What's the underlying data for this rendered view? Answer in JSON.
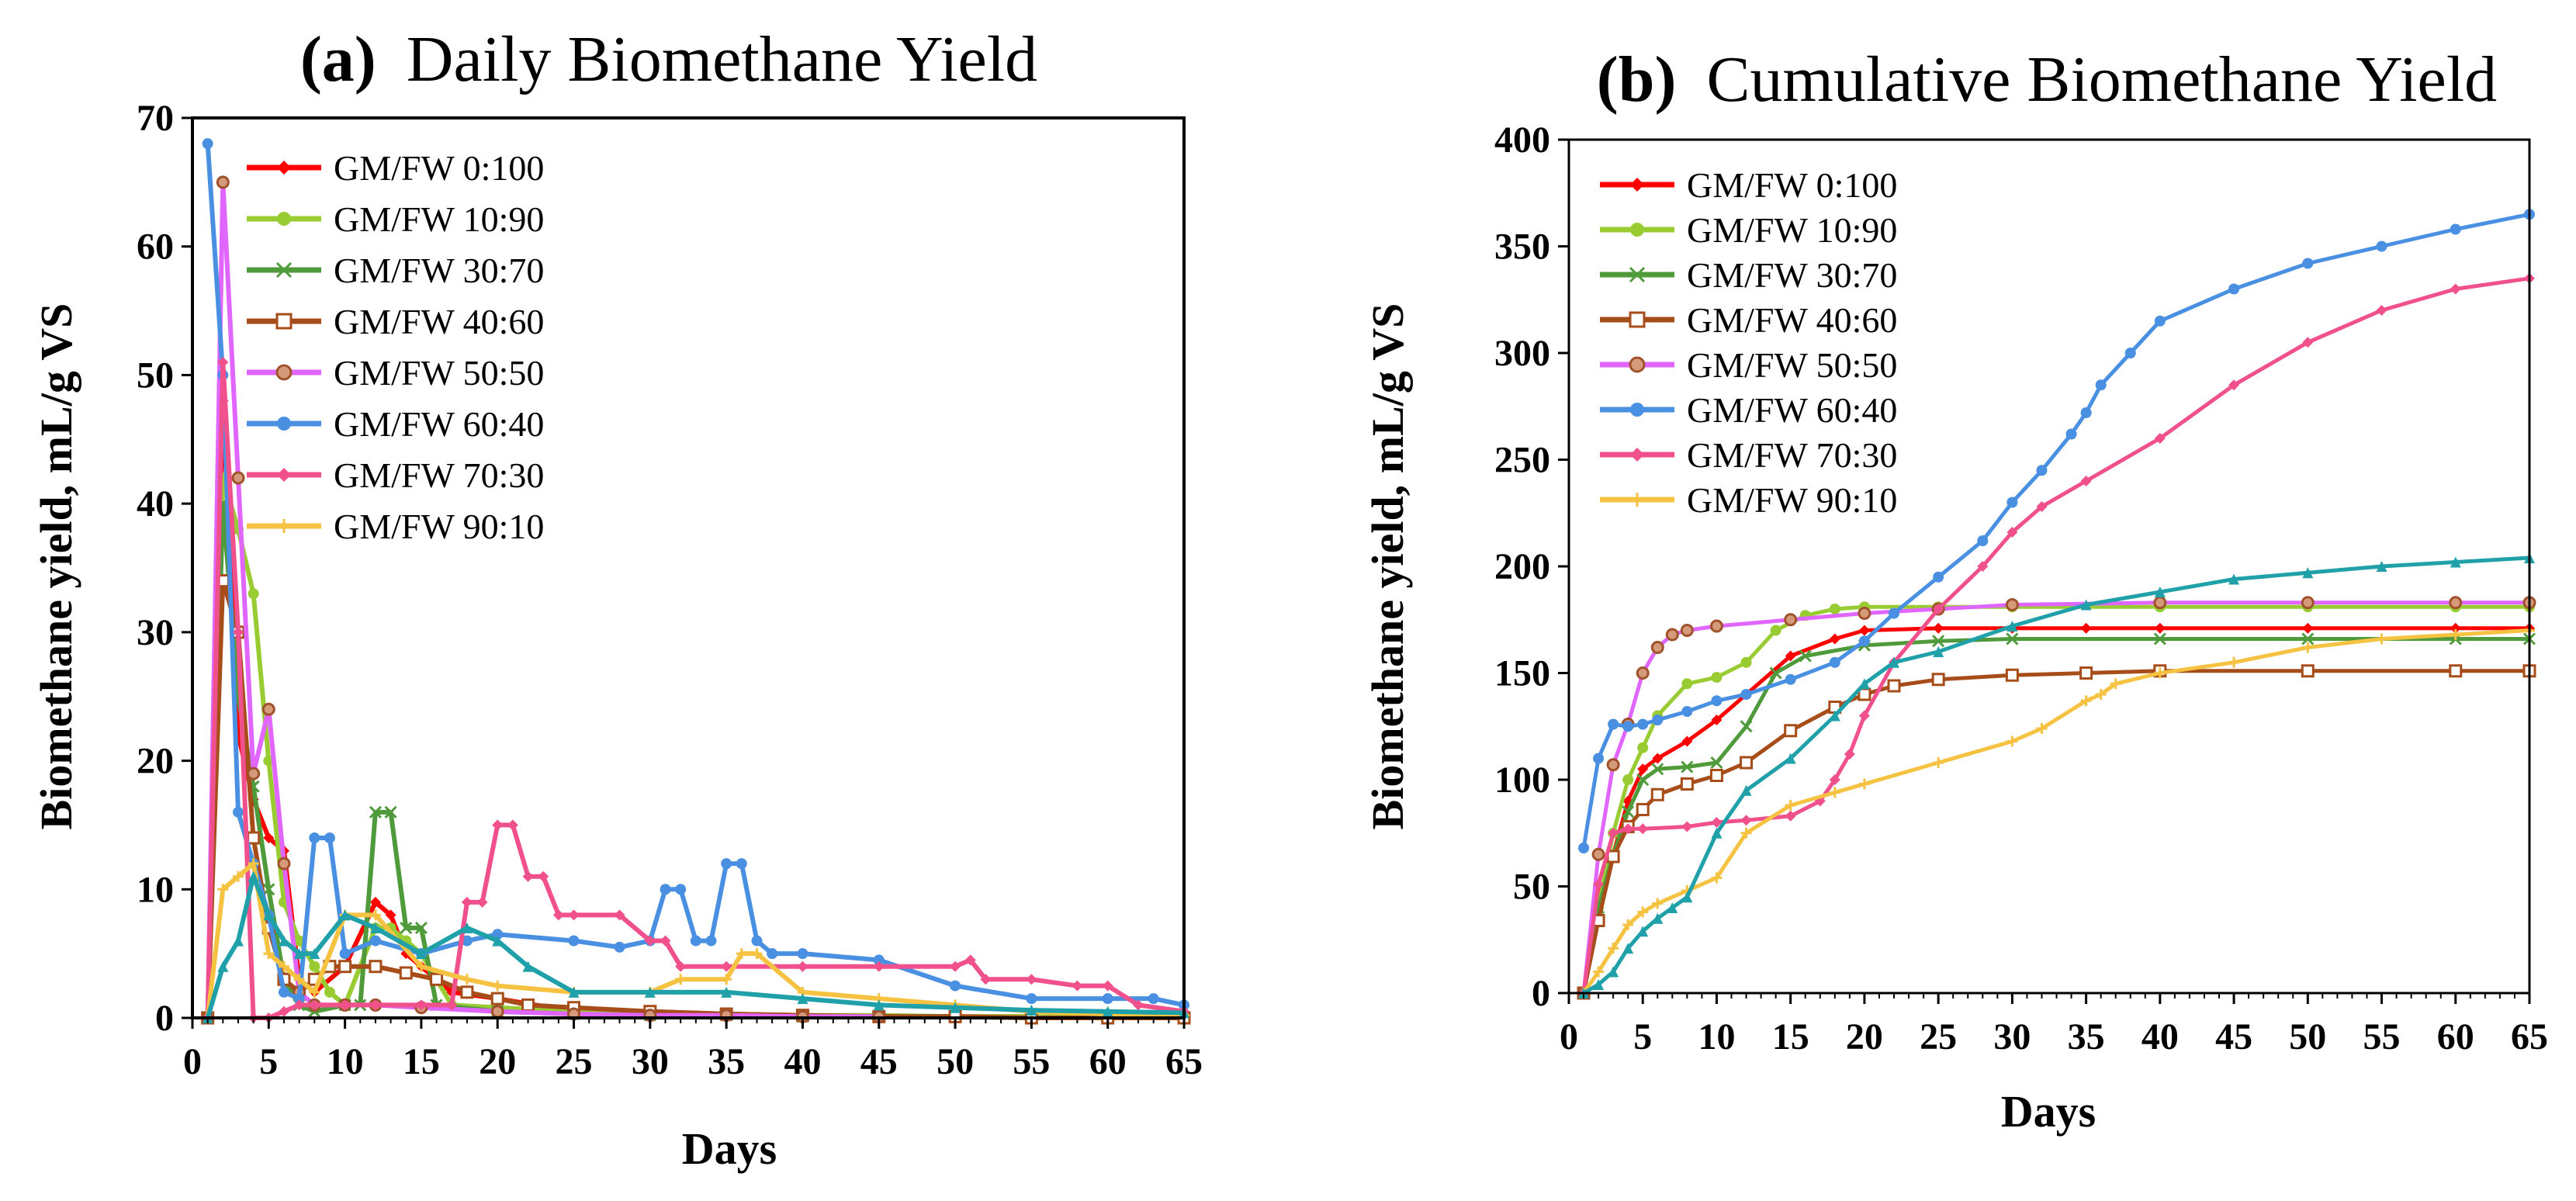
{
  "charts": [
    {
      "id": "a",
      "title_prefix": "(a)",
      "title_text": "Daily Biomethane Yield",
      "xlabel": "Days",
      "ylabel": "Biomethane yield, mL/g VS",
      "xticks": [
        "0",
        "5",
        "10",
        "15",
        "20",
        "25",
        "30",
        "35",
        "40",
        "45",
        "50",
        "55",
        "60",
        "65"
      ],
      "yticks": [
        "0",
        "10",
        "20",
        "30",
        "40",
        "50",
        "60",
        "70"
      ]
    },
    {
      "id": "b",
      "title_prefix": "(b)",
      "title_text": "Cumulative Biomethane Yield",
      "xlabel": "Days",
      "ylabel": "Biomethane yield, mL/g VS",
      "xticks": [
        "0",
        "5",
        "10",
        "15",
        "20",
        "25",
        "30",
        "35",
        "40",
        "45",
        "50",
        "55",
        "60",
        "65"
      ],
      "yticks": [
        "0",
        "50",
        "100",
        "150",
        "200",
        "250",
        "300",
        "350",
        "400"
      ]
    }
  ],
  "legend": [
    {
      "label": "GM/FW  0:100",
      "color": "#ff0000",
      "marker": "diamond"
    },
    {
      "label": "GM/FW  10:90",
      "color": "#99cc33",
      "marker": "circle"
    },
    {
      "label": "GM/FW  30:70",
      "color": "#4f9a3a",
      "marker": "x"
    },
    {
      "label": "GM/FW  40:60",
      "color": "#a64d1a",
      "marker": "square"
    },
    {
      "label": "GM/FW  50:50",
      "color": "#e066ff",
      "marker": "circle-brown"
    },
    {
      "label": "GM/FW  60:40",
      "color": "#4a90e2",
      "marker": "circle"
    },
    {
      "label": "GM/FW  70:30",
      "color": "#f0508c",
      "marker": "diamond"
    },
    {
      "label": "GM/FW  90:10",
      "color": "#f5c242",
      "marker": "plus"
    }
  ],
  "chart_data": [
    {
      "type": "line",
      "title": "(a) Daily Biomethane Yield",
      "xlabel": "Days",
      "ylabel": "Biomethane yield, mL/g VS",
      "xlim": [
        0,
        65
      ],
      "ylim": [
        0,
        70
      ],
      "series": [
        {
          "name": "GM/FW 0:100",
          "color": "#ff0000",
          "x": [
            1,
            2,
            3,
            4,
            5,
            6,
            7,
            8,
            10,
            12,
            13,
            14,
            15,
            17,
            20,
            25,
            30,
            35,
            40,
            45,
            50,
            55,
            60,
            65
          ],
          "values": [
            0,
            48,
            22,
            17,
            14,
            13,
            3,
            2,
            4,
            9,
            8,
            5,
            4,
            2,
            1.5,
            0.5,
            0.5,
            0.3,
            0.2,
            0.1,
            0.1,
            0.1,
            0,
            0
          ]
        },
        {
          "name": "GM/FW 10:90",
          "color": "#99cc33",
          "x": [
            1,
            2,
            3,
            4,
            5,
            6,
            7,
            8,
            9,
            10,
            12,
            13,
            14,
            15,
            17,
            20,
            25,
            30,
            35,
            40,
            45,
            50,
            55,
            60,
            65
          ],
          "values": [
            0,
            42,
            38,
            33,
            20,
            9,
            6,
            4,
            2,
            1,
            7,
            7,
            6,
            5,
            1,
            0.8,
            0.5,
            0.4,
            0.3,
            0.2,
            0.2,
            0.1,
            0.1,
            0,
            0
          ]
        },
        {
          "name": "GM/FW 30:70",
          "color": "#4f9a3a",
          "x": [
            1,
            2,
            3,
            4,
            5,
            6,
            7,
            8,
            10,
            11,
            12,
            13,
            14,
            15,
            16,
            20,
            25,
            30,
            35,
            40,
            45,
            50,
            55,
            60,
            65
          ],
          "values": [
            0,
            40,
            25,
            18,
            10,
            3,
            1,
            0.5,
            1,
            1,
            16,
            16,
            7,
            7,
            1,
            0.5,
            0.3,
            0.2,
            0.2,
            0.1,
            0.1,
            0.1,
            0,
            0,
            0
          ]
        },
        {
          "name": "GM/FW 40:60",
          "color": "#a64d1a",
          "x": [
            1,
            2,
            3,
            4,
            5,
            6,
            7,
            8,
            9,
            10,
            12,
            14,
            16,
            18,
            20,
            22,
            25,
            30,
            35,
            40,
            45,
            50,
            55,
            60,
            65
          ],
          "values": [
            0,
            34,
            30,
            14,
            7,
            3,
            2,
            3,
            4,
            4,
            4,
            3.5,
            3,
            2,
            1.5,
            1,
            0.8,
            0.5,
            0.3,
            0.2,
            0.1,
            0.1,
            0,
            0,
            0
          ]
        },
        {
          "name": "GM/FW 50:50",
          "color": "#e066ff",
          "x": [
            1,
            2,
            3,
            4,
            5,
            6,
            7,
            8,
            10,
            12,
            15,
            20,
            25,
            30,
            35,
            40,
            45
          ],
          "values": [
            0,
            65,
            42,
            19,
            24,
            12,
            2,
            1,
            1,
            1,
            0.8,
            0.5,
            0.3,
            0.2,
            0.2,
            0.1,
            0.1
          ]
        },
        {
          "name": "GM/FW 60:40",
          "color": "#4a90e2",
          "x": [
            1,
            2,
            3,
            4,
            5,
            6,
            7,
            8,
            9,
            10,
            12,
            15,
            18,
            20,
            25,
            28,
            30,
            31,
            32,
            33,
            34,
            35,
            36,
            37,
            38,
            40,
            45,
            50,
            55,
            60,
            63,
            65
          ],
          "values": [
            68,
            50,
            16,
            12,
            8,
            2,
            1.5,
            14,
            14,
            5,
            6,
            5,
            6,
            6.5,
            6,
            5.5,
            6,
            10,
            10,
            6,
            6,
            12,
            12,
            6,
            5,
            5,
            4.5,
            2.5,
            1.5,
            1.5,
            1.5,
            1
          ]
        },
        {
          "name": "GM/FW 70:30",
          "color": "#f0508c",
          "x": [
            1,
            2,
            3,
            4,
            5,
            6,
            7,
            8,
            10,
            12,
            15,
            17,
            18,
            19,
            20,
            21,
            22,
            23,
            24,
            25,
            28,
            30,
            31,
            32,
            35,
            40,
            45,
            50,
            51,
            52,
            55,
            58,
            60,
            62,
            65
          ],
          "values": [
            0,
            51,
            30,
            0,
            0,
            0.5,
            1,
            1,
            1,
            1,
            1,
            1,
            9,
            9,
            15,
            15,
            11,
            11,
            8,
            8,
            8,
            6,
            6,
            4,
            4,
            4,
            4,
            4,
            4.5,
            3,
            3,
            2.5,
            2.5,
            1,
            0.5
          ]
        },
        {
          "name": "GM/FW 90:10",
          "color": "#f5c242",
          "x": [
            1,
            2,
            3,
            4,
            5,
            6,
            7,
            8,
            10,
            12,
            15,
            18,
            20,
            25,
            30,
            32,
            35,
            36,
            37,
            40,
            45,
            50,
            55,
            60,
            65
          ],
          "values": [
            0,
            10,
            11,
            12,
            5,
            4,
            3,
            2,
            8,
            8,
            4,
            3,
            2.5,
            2,
            2,
            3,
            3,
            5,
            5,
            2,
            1.5,
            1,
            0.5,
            0.3,
            0.2
          ]
        },
        {
          "name": "teal (unlabeled)",
          "color": "#20a0a8",
          "x": [
            1,
            2,
            3,
            4,
            5,
            6,
            7,
            8,
            10,
            12,
            15,
            18,
            20,
            22,
            25,
            30,
            35,
            40,
            45,
            50,
            55,
            60,
            65
          ],
          "values": [
            0,
            4,
            6,
            11,
            8,
            6,
            5,
            5,
            8,
            7,
            5,
            7,
            6,
            4,
            2,
            2,
            2,
            1.5,
            1,
            0.8,
            0.6,
            0.5,
            0.4
          ]
        }
      ]
    },
    {
      "type": "line",
      "title": "(b) Cumulative Biomethane Yield",
      "xlabel": "Days",
      "ylabel": "Biomethane yield, mL/g VS",
      "xlim": [
        0,
        65
      ],
      "ylim": [
        0,
        400
      ],
      "series": [
        {
          "name": "GM/FW 0:100",
          "color": "#ff0000",
          "x": [
            1,
            2,
            3,
            4,
            5,
            6,
            8,
            10,
            12,
            15,
            18,
            20,
            25,
            30,
            35,
            40,
            50,
            60,
            65
          ],
          "values": [
            0,
            45,
            65,
            90,
            105,
            110,
            118,
            128,
            140,
            158,
            166,
            170,
            171,
            171,
            171,
            171,
            171,
            171,
            171
          ]
        },
        {
          "name": "GM/FW 10:90",
          "color": "#99cc33",
          "x": [
            1,
            2,
            3,
            4,
            5,
            6,
            8,
            10,
            12,
            14,
            16,
            18,
            20,
            25,
            30,
            40,
            50,
            60,
            65
          ],
          "values": [
            0,
            40,
            75,
            100,
            115,
            130,
            145,
            148,
            155,
            170,
            177,
            180,
            181,
            181,
            181,
            181,
            181,
            181,
            181
          ]
        },
        {
          "name": "GM/FW 30:70",
          "color": "#4f9a3a",
          "x": [
            1,
            2,
            3,
            4,
            5,
            6,
            8,
            10,
            12,
            14,
            16,
            20,
            25,
            30,
            40,
            50,
            60,
            65
          ],
          "values": [
            0,
            40,
            65,
            85,
            100,
            105,
            106,
            108,
            125,
            150,
            158,
            163,
            165,
            166,
            166,
            166,
            166,
            166
          ]
        },
        {
          "name": "GM/FW 40:60",
          "color": "#a64d1a",
          "x": [
            1,
            2,
            3,
            4,
            5,
            6,
            8,
            10,
            12,
            15,
            18,
            20,
            22,
            25,
            30,
            35,
            40,
            50,
            60,
            65
          ],
          "values": [
            0,
            34,
            64,
            78,
            86,
            93,
            98,
            102,
            108,
            123,
            134,
            140,
            144,
            147,
            149,
            150,
            151,
            151,
            151,
            151
          ]
        },
        {
          "name": "GM/FW 50:50",
          "color": "#e066ff",
          "x": [
            1,
            2,
            3,
            4,
            5,
            6,
            7,
            8,
            10,
            15,
            20,
            25,
            30,
            40,
            50,
            60,
            65
          ],
          "values": [
            0,
            65,
            107,
            126,
            150,
            162,
            168,
            170,
            172,
            175,
            178,
            180,
            182,
            183,
            183,
            183,
            183
          ]
        },
        {
          "name": "GM/FW 60:40",
          "color": "#4a90e2",
          "x": [
            1,
            2,
            3,
            4,
            5,
            6,
            8,
            10,
            12,
            15,
            18,
            20,
            22,
            25,
            28,
            30,
            32,
            34,
            35,
            36,
            38,
            40,
            45,
            50,
            55,
            60,
            65
          ],
          "values": [
            68,
            110,
            126,
            125,
            126,
            128,
            132,
            137,
            140,
            147,
            155,
            165,
            178,
            195,
            212,
            230,
            245,
            262,
            272,
            285,
            300,
            315,
            330,
            342,
            350,
            358,
            365
          ]
        },
        {
          "name": "GM/FW 70:30",
          "color": "#f0508c",
          "x": [
            1,
            2,
            3,
            4,
            5,
            8,
            10,
            12,
            15,
            17,
            18,
            19,
            20,
            22,
            25,
            28,
            30,
            32,
            35,
            40,
            45,
            50,
            55,
            60,
            65
          ],
          "values": [
            0,
            51,
            75,
            77,
            77,
            78,
            80,
            81,
            83,
            90,
            100,
            112,
            130,
            155,
            180,
            200,
            216,
            228,
            240,
            260,
            285,
            305,
            320,
            330,
            335
          ]
        },
        {
          "name": "GM/FW 90:10",
          "color": "#f5c242",
          "x": [
            1,
            2,
            3,
            4,
            5,
            6,
            8,
            10,
            12,
            15,
            18,
            20,
            25,
            30,
            32,
            35,
            36,
            37,
            40,
            45,
            50,
            55,
            60,
            65
          ],
          "values": [
            0,
            10,
            21,
            32,
            38,
            42,
            48,
            54,
            75,
            88,
            94,
            98,
            108,
            118,
            124,
            137,
            140,
            145,
            150,
            155,
            162,
            166,
            168,
            170
          ]
        },
        {
          "name": "teal (unlabeled)",
          "color": "#20a0a8",
          "x": [
            1,
            2,
            3,
            4,
            5,
            6,
            7,
            8,
            10,
            12,
            15,
            18,
            20,
            22,
            25,
            30,
            35,
            40,
            45,
            50,
            55,
            60,
            65
          ],
          "values": [
            0,
            4,
            10,
            21,
            29,
            35,
            40,
            45,
            75,
            95,
            110,
            130,
            145,
            155,
            160,
            172,
            182,
            188,
            194,
            197,
            200,
            202,
            204
          ]
        }
      ]
    }
  ]
}
